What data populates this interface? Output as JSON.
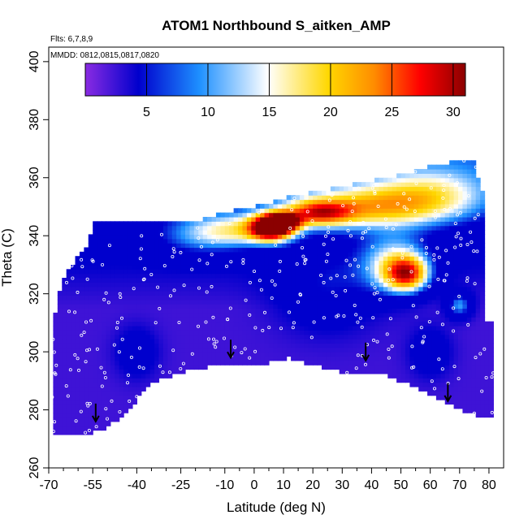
{
  "chart_data": {
    "type": "heatmap",
    "title": "ATOM1 Northbound S_aitken_AMP",
    "annotations": {
      "flights": "Flts: 6,7,8,9",
      "dates": "MMDD: 0812,0815,0817,0820"
    },
    "xlabel": "Latitude (deg N)",
    "ylabel": "Theta (C)",
    "xlim": [
      -70,
      85
    ],
    "ylim": [
      260,
      405
    ],
    "x_major_ticks": [
      -70,
      -55,
      -40,
      -25,
      -10,
      0,
      10,
      20,
      30,
      40,
      50,
      60,
      70,
      80
    ],
    "x_minor_ticks": [
      -65,
      -60,
      -50,
      -45,
      -35,
      -30,
      -20,
      -15,
      -5,
      5,
      15,
      25,
      35,
      45,
      55,
      65,
      75
    ],
    "y_ticks": [
      260,
      280,
      300,
      320,
      340,
      360,
      380,
      400
    ],
    "colorbar": {
      "range": [
        0,
        31
      ],
      "ticks": [
        5,
        10,
        15,
        20,
        25,
        30
      ],
      "colors": [
        "#8a2be2",
        "#0000cd",
        "#1e90ff",
        "#ffffff",
        "#ffd700",
        "#ff8c00",
        "#ff0000",
        "#8b0000"
      ]
    },
    "field_boundary": [
      [
        -69,
        272
      ],
      [
        -56,
        272
      ],
      [
        -50,
        274
      ],
      [
        -45,
        278
      ],
      [
        -35,
        289
      ],
      [
        -25,
        293
      ],
      [
        -15,
        295
      ],
      [
        -5,
        295
      ],
      [
        0,
        295
      ],
      [
        12,
        298
      ],
      [
        25,
        294
      ],
      [
        35,
        292
      ],
      [
        45,
        292
      ],
      [
        52,
        289
      ],
      [
        62,
        284
      ],
      [
        68,
        281
      ],
      [
        78,
        277
      ],
      [
        82,
        277
      ],
      [
        82,
        309
      ],
      [
        79,
        311
      ],
      [
        79,
        353
      ],
      [
        76,
        360
      ],
      [
        76,
        366
      ],
      [
        70,
        366
      ],
      [
        60,
        364
      ],
      [
        50,
        361
      ],
      [
        45,
        360
      ],
      [
        40,
        359
      ],
      [
        30,
        357
      ],
      [
        20,
        355
      ],
      [
        10,
        353
      ],
      [
        0,
        350
      ],
      [
        -10,
        348
      ],
      [
        -20,
        345
      ],
      [
        -30,
        345
      ],
      [
        -40,
        345
      ],
      [
        -50,
        345
      ],
      [
        -54,
        345
      ],
      [
        -57,
        337
      ],
      [
        -62,
        330
      ],
      [
        -66,
        323
      ],
      [
        -68,
        312
      ],
      [
        -69,
        305
      ]
    ],
    "hotspots": [
      {
        "lat": 6,
        "theta": 343,
        "value": 30,
        "spread_lat": 5,
        "spread_theta": 3
      },
      {
        "lat": 10,
        "theta": 345,
        "value": 20,
        "spread_lat": 4,
        "spread_theta": 2
      },
      {
        "lat": 22,
        "theta": 348,
        "value": 16,
        "spread_lat": 8,
        "spread_theta": 3
      },
      {
        "lat": 40,
        "theta": 350,
        "value": 13,
        "spread_lat": 18,
        "spread_theta": 5
      },
      {
        "lat": 52,
        "theta": 327,
        "value": 18,
        "spread_lat": 5,
        "spread_theta": 4
      },
      {
        "lat": 48,
        "theta": 330,
        "value": 11,
        "spread_lat": 8,
        "spread_theta": 7
      },
      {
        "lat": -5,
        "theta": 342,
        "value": 10,
        "spread_lat": 10,
        "spread_theta": 4
      },
      {
        "lat": 60,
        "theta": 355,
        "value": 8,
        "spread_lat": 14,
        "spread_theta": 6
      },
      {
        "lat": -20,
        "theta": 340,
        "value": 5,
        "spread_lat": 10,
        "spread_theta": 5
      },
      {
        "lat": 70,
        "theta": 316,
        "value": 9,
        "spread_lat": 3,
        "spread_theta": 3
      },
      {
        "lat": -40,
        "theta": 300,
        "value": 4,
        "spread_lat": 5,
        "spread_theta": 6
      },
      {
        "lat": 25,
        "theta": 322,
        "value": 5,
        "spread_lat": 12,
        "spread_theta": 10
      },
      {
        "lat": 60,
        "theta": 300,
        "value": 4,
        "spread_lat": 5,
        "spread_theta": 6
      }
    ],
    "tropopause_arrows": [
      {
        "lat": -54,
        "theta": 276
      },
      {
        "lat": -8,
        "theta": 298
      },
      {
        "lat": 38,
        "theta": 297
      },
      {
        "lat": 66,
        "theta": 283
      }
    ]
  }
}
